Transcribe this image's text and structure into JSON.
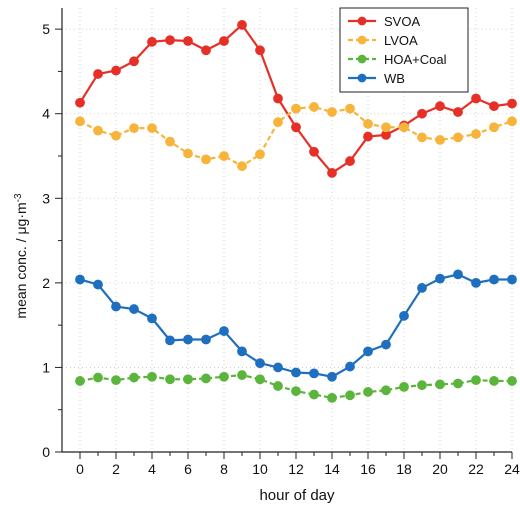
{
  "chart_data": {
    "type": "line",
    "title": "",
    "xlabel": "hour of day",
    "ylabel_prefix": "mean conc. / μg·m",
    "ylabel_exp": "-3",
    "xlim": [
      -1,
      24
    ],
    "ylim": [
      0,
      5.25
    ],
    "x_ticks": [
      0,
      2,
      4,
      6,
      8,
      10,
      12,
      14,
      16,
      18,
      20,
      22,
      24
    ],
    "x_tick_labels": [
      "0",
      "2",
      "4",
      "6",
      "8",
      "10",
      "12",
      "14",
      "16",
      "18",
      "20",
      "22",
      "24"
    ],
    "y_ticks": [
      0,
      1,
      2,
      3,
      4,
      5
    ],
    "y_tick_labels": [
      "0",
      "1",
      "2",
      "3",
      "4",
      "5"
    ],
    "grid": true,
    "legend_position": "top-right",
    "x": [
      0,
      1,
      2,
      3,
      4,
      5,
      6,
      7,
      8,
      9,
      10,
      11,
      12,
      13,
      14,
      15,
      16,
      17,
      18,
      19,
      20,
      21,
      22,
      23,
      24
    ],
    "series": [
      {
        "name": "SVOA",
        "color": "#e63027",
        "line_style": "solid",
        "values": [
          4.13,
          4.47,
          4.51,
          4.62,
          4.85,
          4.87,
          4.86,
          4.75,
          4.86,
          5.05,
          4.75,
          4.18,
          3.84,
          3.55,
          3.3,
          3.44,
          3.73,
          3.75,
          3.86,
          4.0,
          4.09,
          4.02,
          4.18,
          4.09,
          4.12
        ]
      },
      {
        "name": "LVOA",
        "color": "#f7b43a",
        "line_style": "dashed",
        "values": [
          3.91,
          3.8,
          3.74,
          3.83,
          3.83,
          3.67,
          3.53,
          3.46,
          3.5,
          3.38,
          3.52,
          3.9,
          4.06,
          4.08,
          4.02,
          4.06,
          3.88,
          3.84,
          3.84,
          3.72,
          3.69,
          3.72,
          3.76,
          3.84,
          3.91
        ]
      },
      {
        "name": "HOA+Coal",
        "color": "#5bb53c",
        "line_style": "dashed",
        "values": [
          0.84,
          0.88,
          0.85,
          0.88,
          0.89,
          0.86,
          0.86,
          0.87,
          0.89,
          0.91,
          0.86,
          0.78,
          0.72,
          0.68,
          0.64,
          0.67,
          0.71,
          0.73,
          0.77,
          0.79,
          0.8,
          0.81,
          0.85,
          0.84,
          0.84
        ]
      },
      {
        "name": "WB",
        "color": "#1f6fc0",
        "line_style": "solid",
        "values": [
          2.04,
          1.98,
          1.72,
          1.69,
          1.58,
          1.32,
          1.33,
          1.33,
          1.43,
          1.19,
          1.05,
          1.0,
          0.94,
          0.93,
          0.89,
          1.01,
          1.19,
          1.27,
          1.61,
          1.94,
          2.05,
          2.1,
          2.0,
          2.04,
          2.04
        ]
      }
    ]
  }
}
